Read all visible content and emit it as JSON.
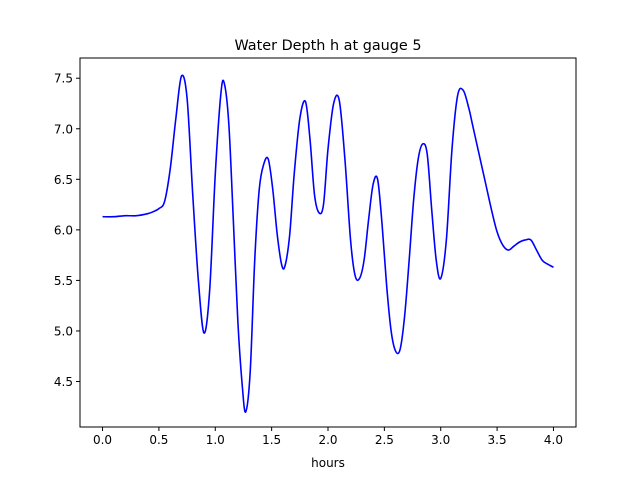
{
  "chart_data": {
    "type": "line",
    "title": "Water Depth h at gauge 5",
    "xlabel": "hours",
    "ylabel": "",
    "xlim": [
      -0.2,
      4.2
    ],
    "ylim": [
      4.05,
      7.7
    ],
    "grid": false,
    "x_ticks": [
      0.0,
      0.5,
      1.0,
      1.5,
      2.0,
      2.5,
      3.0,
      3.5,
      4.0
    ],
    "x_tick_labels": [
      "0.0",
      "0.5",
      "1.0",
      "1.5",
      "2.0",
      "2.5",
      "3.0",
      "3.5",
      "4.0"
    ],
    "y_ticks": [
      4.5,
      5.0,
      5.5,
      6.0,
      6.5,
      7.0,
      7.5
    ],
    "y_tick_labels": [
      "4.5",
      "5.0",
      "5.5",
      "6.0",
      "6.5",
      "7.0",
      "7.5"
    ],
    "series": [
      {
        "color": "#0000ff",
        "x": [
          0.0,
          0.1,
          0.2,
          0.3,
          0.4,
          0.45,
          0.5,
          0.55,
          0.6,
          0.65,
          0.7,
          0.75,
          0.8,
          0.85,
          0.9,
          0.95,
          1.0,
          1.05,
          1.08,
          1.12,
          1.16,
          1.2,
          1.24,
          1.27,
          1.31,
          1.35,
          1.39,
          1.43,
          1.47,
          1.51,
          1.55,
          1.59,
          1.62,
          1.66,
          1.7,
          1.75,
          1.8,
          1.84,
          1.88,
          1.92,
          1.96,
          2.0,
          2.05,
          2.1,
          2.15,
          2.2,
          2.24,
          2.28,
          2.32,
          2.36,
          2.4,
          2.44,
          2.48,
          2.52,
          2.56,
          2.6,
          2.64,
          2.68,
          2.72,
          2.76,
          2.8,
          2.84,
          2.88,
          2.92,
          2.96,
          3.0,
          3.05,
          3.1,
          3.15,
          3.2,
          3.25,
          3.28,
          3.32,
          3.36,
          3.4,
          3.45,
          3.5,
          3.55,
          3.6,
          3.65,
          3.7,
          3.75,
          3.8,
          3.85,
          3.9,
          3.95,
          4.0
        ],
        "y": [
          6.13,
          6.13,
          6.14,
          6.14,
          6.16,
          6.18,
          6.21,
          6.28,
          6.6,
          7.1,
          7.52,
          7.3,
          6.35,
          5.5,
          4.98,
          5.4,
          6.55,
          7.35,
          7.45,
          7.05,
          6.1,
          5.1,
          4.45,
          4.2,
          4.6,
          5.7,
          6.4,
          6.65,
          6.7,
          6.4,
          5.95,
          5.65,
          5.65,
          5.95,
          6.55,
          7.1,
          7.27,
          6.9,
          6.35,
          6.17,
          6.25,
          6.8,
          7.25,
          7.28,
          6.7,
          5.9,
          5.55,
          5.52,
          5.7,
          6.1,
          6.45,
          6.5,
          6.05,
          5.45,
          5.0,
          4.8,
          4.82,
          5.15,
          5.7,
          6.3,
          6.7,
          6.85,
          6.75,
          6.2,
          5.7,
          5.52,
          5.9,
          6.8,
          7.33,
          7.38,
          7.2,
          7.05,
          6.85,
          6.65,
          6.45,
          6.2,
          5.98,
          5.85,
          5.8,
          5.84,
          5.88,
          5.9,
          5.9,
          5.8,
          5.7,
          5.66,
          5.63
        ]
      }
    ]
  }
}
